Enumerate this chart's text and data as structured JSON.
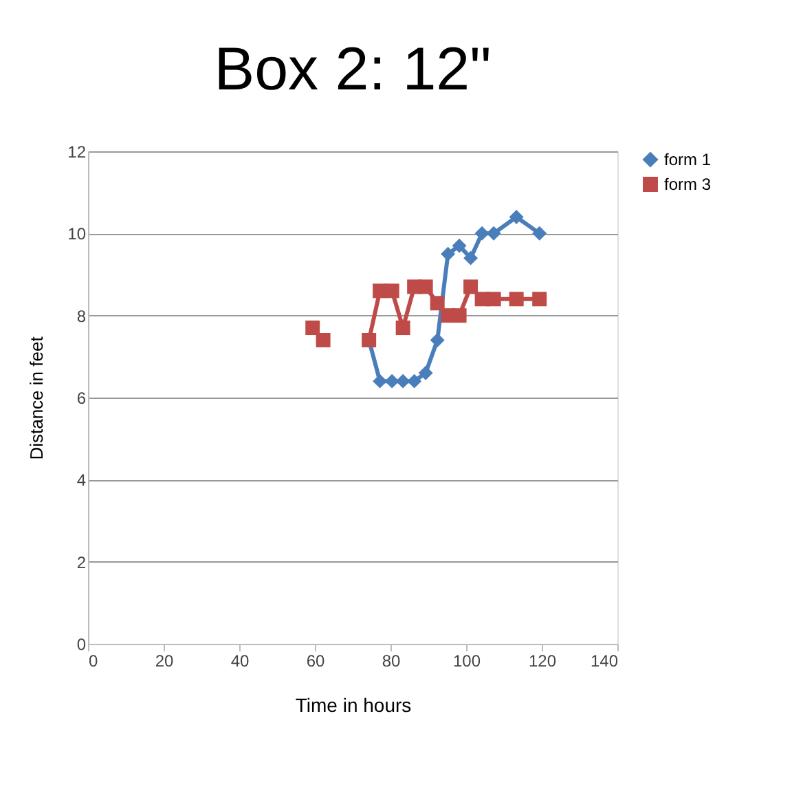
{
  "chart_data": {
    "type": "line",
    "title": "Box 2: 12\"",
    "xlabel": "Time in hours",
    "ylabel": "Distance in feet",
    "xlim": [
      0,
      140
    ],
    "xticks": [
      0,
      20,
      40,
      60,
      80,
      100,
      120,
      140
    ],
    "ylim": [
      0,
      12
    ],
    "yticks": [
      0,
      2,
      4,
      6,
      8,
      10,
      12
    ],
    "grid": "y",
    "legend": "right",
    "line_style": "solid",
    "series": [
      {
        "name": "form 1",
        "color": "#4a7ebb",
        "marker": "diamond",
        "x": [
          74.3,
          77.2,
          80.4,
          83.3,
          86.3,
          89.3,
          92.4,
          95.2,
          98.2,
          101.2,
          104.2,
          107.3,
          113.3,
          119.4
        ],
        "values": [
          7.4,
          6.4,
          6.4,
          6.4,
          6.4,
          6.6,
          7.4,
          9.5,
          9.7,
          9.4,
          10.0,
          10.0,
          10.4,
          10.0
        ]
      },
      {
        "name": "form 3",
        "color": "#be4b48",
        "marker": "square",
        "x": [
          59.4,
          62.2,
          68.0,
          74.3,
          77.2,
          80.4,
          83.3,
          86.3,
          89.3,
          92.4,
          95.2,
          98.2,
          101.2,
          104.2,
          107.3,
          113.3,
          119.4
        ],
        "values": [
          7.7,
          7.4,
          null,
          7.4,
          8.6,
          8.6,
          7.7,
          8.7,
          8.7,
          8.3,
          8.0,
          8.0,
          8.7,
          8.4,
          8.4,
          8.4,
          8.4
        ]
      }
    ]
  }
}
